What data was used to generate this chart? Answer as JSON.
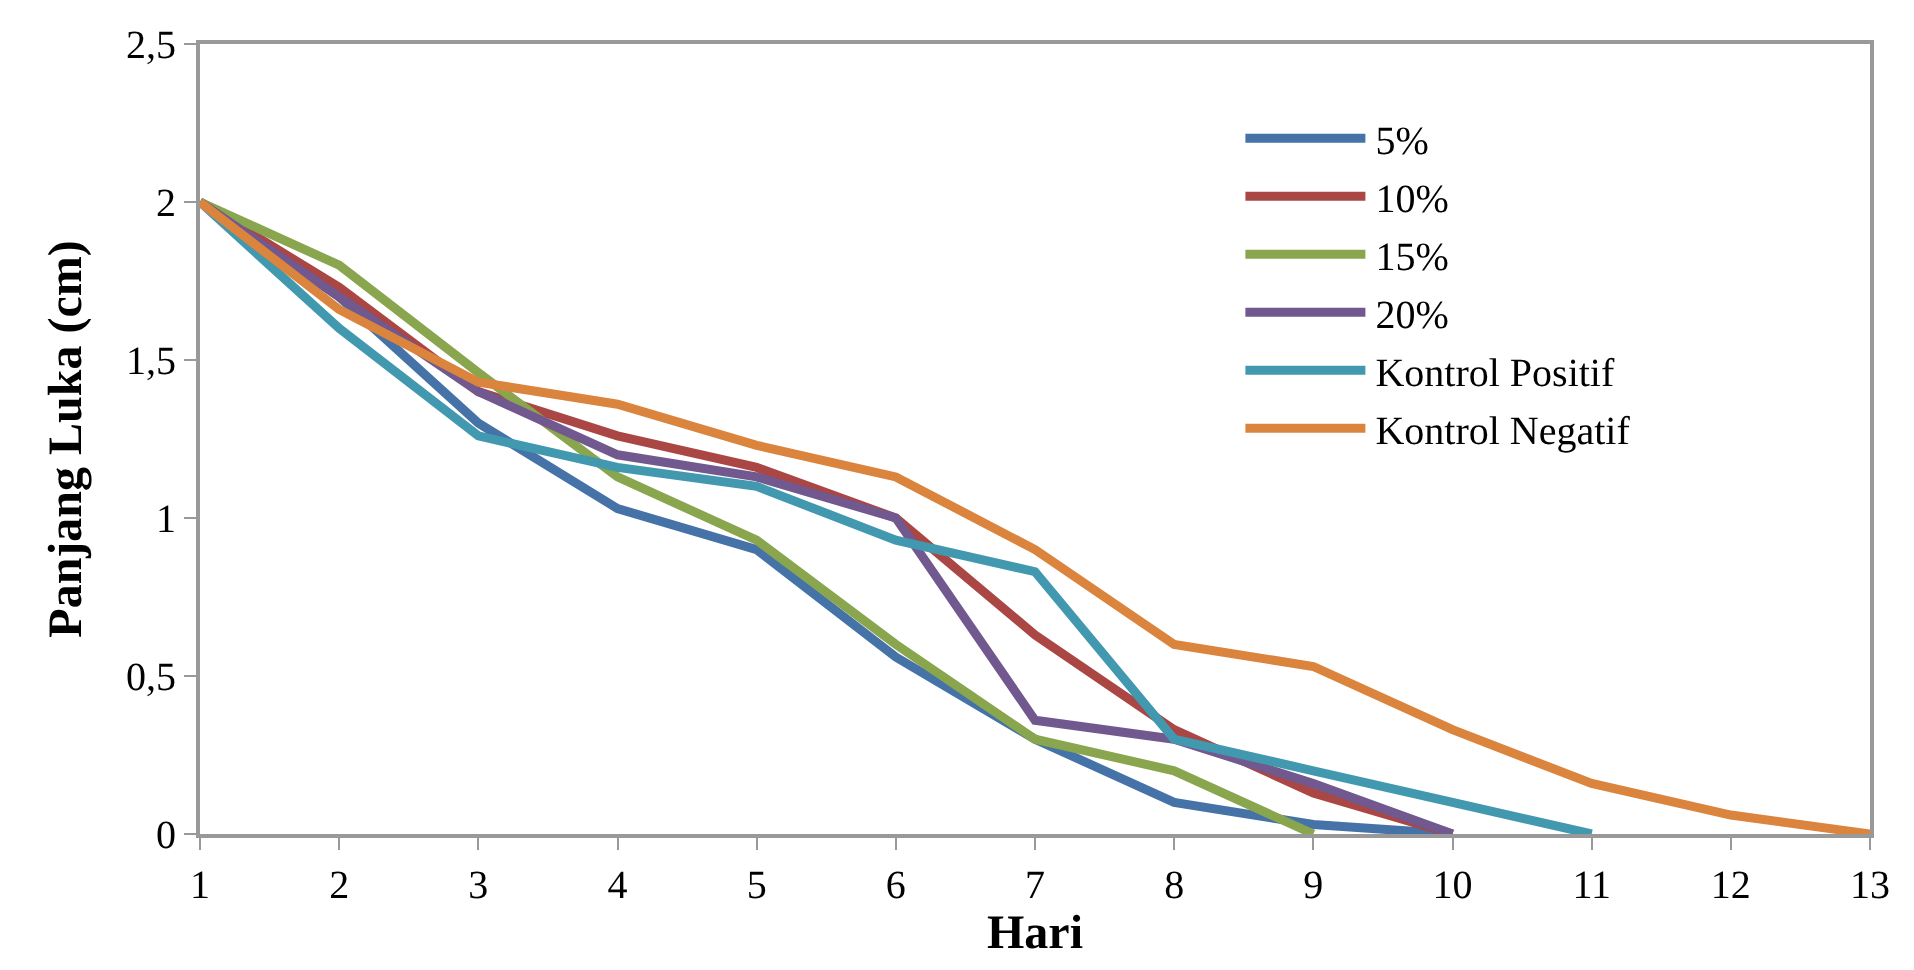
{
  "chart_data": {
    "type": "line",
    "xlabel": "Hari",
    "ylabel": "Panjang Luka (cm)",
    "x": [
      1,
      2,
      3,
      4,
      5,
      6,
      7,
      8,
      9,
      10,
      11,
      12,
      13
    ],
    "xlim": [
      1,
      13
    ],
    "xticks": [
      1,
      2,
      3,
      4,
      5,
      6,
      7,
      8,
      9,
      10,
      11,
      12,
      13
    ],
    "ylim": [
      0,
      2.5
    ],
    "yticks": [
      0,
      {
        "value": 0.5,
        "label": "0,5"
      },
      1,
      {
        "value": 1.5,
        "label": "1,5"
      },
      2,
      {
        "value": 2.5,
        "label": "2,5"
      }
    ],
    "legend": "top right",
    "marker": "none",
    "line_style": "solid",
    "series": [
      {
        "name": "5%",
        "color": "#4572a7",
        "values": [
          2,
          1.7,
          1.3,
          1.03,
          0.9,
          0.56,
          0.3,
          0.1,
          0.03,
          0,
          null,
          null,
          null
        ]
      },
      {
        "name": "10%",
        "color": "#aa4643",
        "values": [
          2,
          1.73,
          1.4,
          1.26,
          1.16,
          1.0,
          0.63,
          0.33,
          0.13,
          0,
          null,
          null,
          null
        ]
      },
      {
        "name": "15%",
        "color": "#89a54e",
        "values": [
          2,
          1.8,
          1.46,
          1.13,
          0.93,
          0.6,
          0.3,
          0.2,
          0,
          null,
          null,
          null,
          null
        ]
      },
      {
        "name": "20%",
        "color": "#71588f",
        "values": [
          2,
          1.7,
          1.4,
          1.2,
          1.13,
          1.0,
          0.36,
          0.3,
          0.16,
          0,
          null,
          null,
          null
        ]
      },
      {
        "name": "Kontrol Positif",
        "color": "#4198af",
        "values": [
          2,
          1.6,
          1.26,
          1.16,
          1.1,
          0.93,
          0.83,
          0.3,
          0.2,
          0.1,
          0,
          null,
          null
        ]
      },
      {
        "name": "Kontrol Negatif",
        "color": "#db843d",
        "values": [
          2,
          1.66,
          1.43,
          1.36,
          1.23,
          1.13,
          0.9,
          0.6,
          0.53,
          0.33,
          0.16,
          0.06,
          0
        ]
      }
    ]
  }
}
